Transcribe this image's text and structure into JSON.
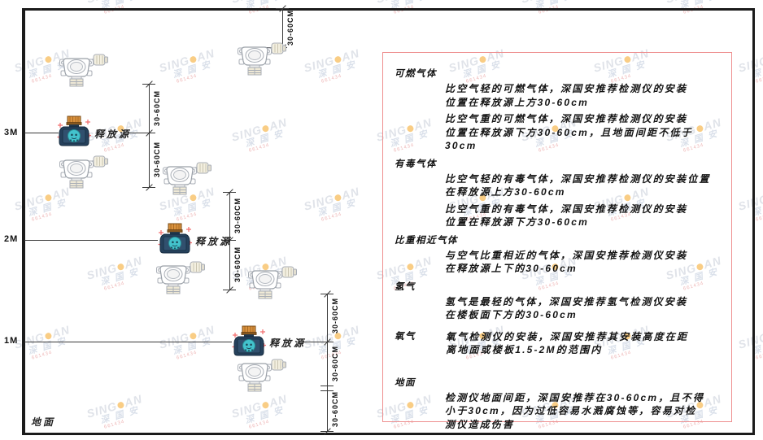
{
  "watermark": {
    "brand_left": "SING",
    "brand_right": "AN",
    "orange_dot_icon": "circle",
    "cjk": "深 国 安",
    "code": "661434"
  },
  "diagram": {
    "height_marks": [
      "3M",
      "2M",
      "1M"
    ],
    "ground_label": "地面",
    "release_source_label": "释放源",
    "dimension_label": "30-60CM"
  },
  "panel": {
    "sections": [
      {
        "id": "flammable",
        "title": "可燃气体",
        "inline": false,
        "paragraphs": [
          {
            "lines": [
              "比空气轻的可燃气体，深国安推荐检测仪的安装",
              "位置在释放源上方30-60cm"
            ]
          },
          {
            "lines": [
              "比空气重的可燃气体，深国安推荐检测仪的安装",
              "位置在释放源下方30-60cm，且地面间距不低于",
              "30cm"
            ]
          }
        ]
      },
      {
        "id": "toxic",
        "title": "有毒气体",
        "inline": false,
        "paragraphs": [
          {
            "lines": [
              "比空气轻的有毒气体，深国安推荐检测仪的安装位置",
              "在释放源上方30-60cm"
            ]
          },
          {
            "lines": [
              "比空气重的有毒气体，深国安推荐检测仪的安装",
              "位置在释放源下方30-60cm"
            ]
          }
        ]
      },
      {
        "id": "similar-density",
        "title": "比重相近气体",
        "inline": false,
        "paragraphs": [
          {
            "lines": [
              "与空气比重相近的气体，深国安推荐检测仪安装",
              "在释放源上下的30-60cm"
            ]
          }
        ]
      },
      {
        "id": "hydrogen",
        "title": "氢气",
        "inline": false,
        "paragraphs": [
          {
            "lines": [
              "氢气是最轻的气体，深国安推荐氢气检测仪安装",
              "在楼板面下方的30-60cm"
            ]
          }
        ]
      },
      {
        "id": "oxygen",
        "title": "氧气",
        "inline": true,
        "paragraphs": [
          {
            "lines": [
              "氧气检测仪的安装，深国安推荐其安装高度在距",
              "离地面或楼板1.5-2M的范围内"
            ]
          }
        ]
      },
      {
        "id": "ground",
        "title": "地面",
        "inline": false,
        "paragraphs": [
          {
            "lines": [
              "检测仪地面间距，深国安推荐在30-60cm，且不得",
              "小于30cm，因为过低容易水溅腐蚀等，容易对检",
              "测仪造成伤害"
            ]
          }
        ]
      }
    ]
  },
  "colors": {
    "panel_border": "#ee8f8f",
    "frame": "#1b1b1b",
    "source_body": "#26415c",
    "source_cap": "#d9913d",
    "source_emblem": "#43c3cd",
    "sparkle": "#f26d6d",
    "watermark_orange": "#f5a623",
    "watermark_gray": "#c7cdd8",
    "watermark_code_red": "#e07a7a"
  }
}
